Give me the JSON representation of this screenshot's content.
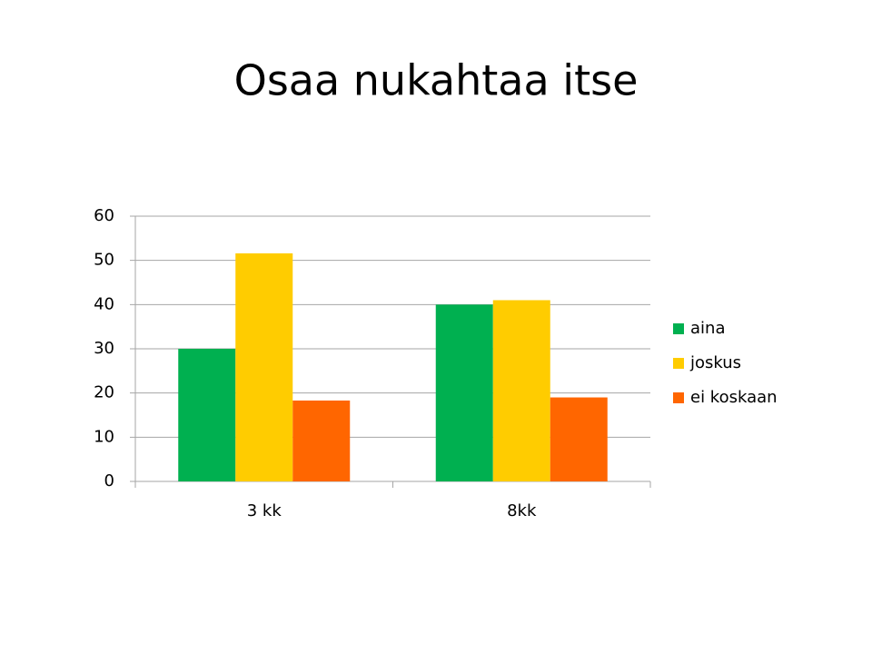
{
  "chart_data": {
    "type": "bar",
    "title": "Osaa nukahtaa itse",
    "categories": [
      "3 kk",
      "8kk"
    ],
    "series": [
      {
        "name": "aina",
        "color": "#00b050",
        "values": [
          30,
          40
        ]
      },
      {
        "name": "joskus",
        "color": "#ffcc00",
        "values": [
          51.6,
          41
        ]
      },
      {
        "name": "ei koskaan",
        "color": "#ff6600",
        "values": [
          18.3,
          19
        ]
      }
    ],
    "ylim": [
      0,
      60
    ],
    "yticks": [
      0,
      10,
      20,
      30,
      40,
      50,
      60
    ],
    "grid": true,
    "legend": "right"
  }
}
